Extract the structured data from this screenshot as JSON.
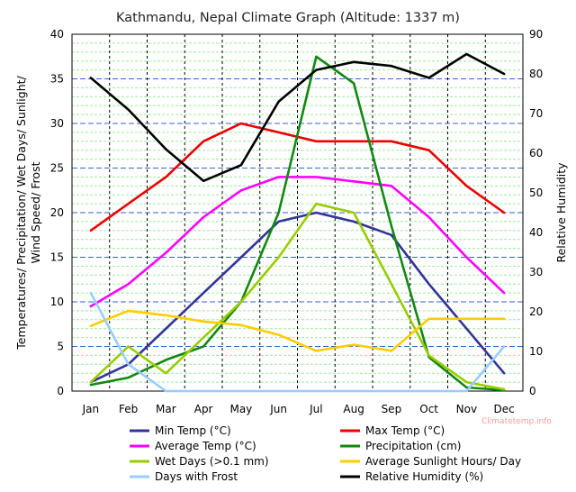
{
  "chart_data": {
    "type": "line",
    "title": "Kathmandu, Nepal Climate Graph (Altitude: 1337 m)",
    "ylabel_left_lines": [
      "Temperatures/ Precipitation/ Wet Days/ Sunlight/",
      "Wind Speed/ Frost"
    ],
    "ylabel_right": "Relative Humidity",
    "ylim_left": [
      0,
      40
    ],
    "yticks_left": [
      0,
      5,
      10,
      15,
      20,
      25,
      30,
      35,
      40
    ],
    "ylim_right": [
      0,
      90
    ],
    "yticks_right": [
      0,
      10,
      20,
      30,
      40,
      50,
      60,
      70,
      80,
      90
    ],
    "categories": [
      "Jan",
      "Feb",
      "Mar",
      "Apr",
      "May",
      "Jun",
      "Jul",
      "Aug",
      "Sep",
      "Oct",
      "Nov",
      "Dec"
    ],
    "watermark": "Climatetemp.info",
    "series": [
      {
        "name": "Min Temp (°C)",
        "axis": "left",
        "color": "#333399",
        "values": [
          1,
          3,
          7,
          11,
          15,
          19,
          20,
          19,
          17.5,
          12,
          7,
          2
        ]
      },
      {
        "name": "Max Temp (°C)",
        "axis": "left",
        "color": "#ee0000",
        "values": [
          18,
          21,
          24,
          28,
          30,
          29,
          28,
          28,
          28,
          27,
          23,
          20
        ]
      },
      {
        "name": "Average Temp (°C)",
        "axis": "left",
        "color": "#ff00ff",
        "values": [
          9.5,
          12,
          15.5,
          19.5,
          22.5,
          24,
          24,
          23.5,
          23,
          19.5,
          15,
          11
        ]
      },
      {
        "name": "Precipitation (cm)",
        "axis": "left",
        "color": "#118811",
        "values": [
          0.7,
          1.5,
          3.5,
          5,
          10,
          20,
          37.5,
          34.5,
          18.5,
          3.8,
          0.4,
          0.1
        ]
      },
      {
        "name": "Wet Days (>0.1 mm)",
        "axis": "left",
        "color": "#99cc00",
        "values": [
          1,
          5,
          2,
          6,
          10,
          15,
          21,
          20,
          12,
          4,
          1,
          0.2
        ]
      },
      {
        "name": "Average Sunlight Hours/ Day",
        "axis": "left",
        "color": "#ffcc00",
        "values": [
          7.3,
          9,
          8.5,
          7.8,
          7.4,
          6.3,
          4.5,
          5.2,
          4.5,
          8.1,
          8.1,
          8.1
        ]
      },
      {
        "name": "Days with Frost",
        "axis": "left",
        "color": "#99ccff",
        "values": [
          11,
          3,
          0,
          null,
          null,
          null,
          null,
          null,
          null,
          null,
          0,
          5
        ]
      },
      {
        "name": "Relative Humidity (%)",
        "axis": "right",
        "color": "#000000",
        "values": [
          79,
          71,
          61,
          53,
          57,
          73,
          81,
          83,
          82,
          79,
          85,
          80
        ]
      }
    ]
  }
}
